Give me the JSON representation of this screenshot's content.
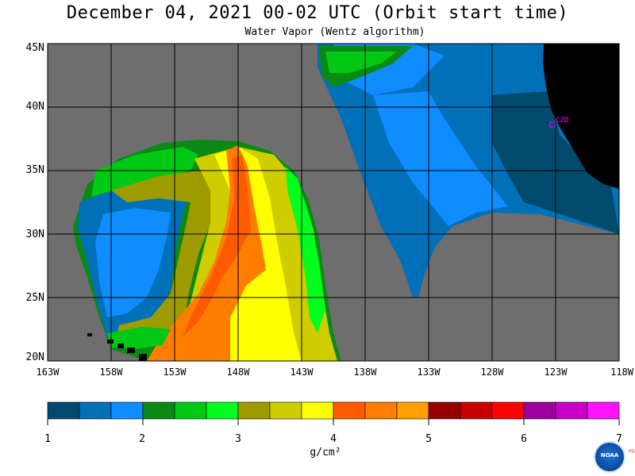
{
  "title": "December 04, 2021  00-02 UTC  (Orbit start time)",
  "subtitle": "Water Vapor (Wentz algorithm)",
  "lat_labels": [
    "45N",
    "40N",
    "35N",
    "30N",
    "25N",
    "20N"
  ],
  "lon_labels": [
    "163W",
    "158W",
    "153W",
    "148W",
    "143W",
    "138W",
    "133W",
    "128W",
    "123W",
    "118W"
  ],
  "station": {
    "label": "CZD",
    "color": "#ff00ff"
  },
  "colorbar": {
    "labels": [
      "1",
      "2",
      "3",
      "4",
      "5",
      "6",
      "7"
    ],
    "unit": "g/cm²",
    "colors": [
      "#004a6e",
      "#0070b8",
      "#0f8cff",
      "#0a8a14",
      "#00c814",
      "#00ff1e",
      "#9e9b00",
      "#cfcc00",
      "#ffff00",
      "#ff5a00",
      "#ff7d00",
      "#ffa000",
      "#960000",
      "#c80000",
      "#ff0000",
      "#9c009c",
      "#c800c8",
      "#ff14ff"
    ]
  },
  "colors": {
    "land_missing": "#6e6e6e",
    "land_black": "#000000",
    "grid": "#000000"
  },
  "logo": {
    "text": "NOAA",
    "side": "PSL"
  }
}
